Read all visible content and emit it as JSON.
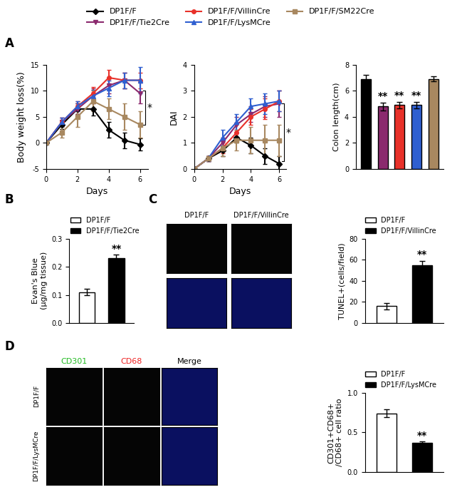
{
  "chart_data": [
    {
      "type": "line",
      "panel": "A",
      "x_label": "Days",
      "y_label": "Body weight loss(%)",
      "x": [
        0,
        1,
        2,
        3,
        4,
        5,
        6
      ],
      "xlim": [
        0,
        6.5
      ],
      "xticks": [
        0,
        2,
        4,
        6
      ],
      "ylim": [
        -5,
        15
      ],
      "yticks": [
        -5,
        0,
        5,
        10,
        15
      ],
      "legend": "upper center",
      "series": [
        {
          "name": "DP1F/F",
          "color": "#000000",
          "marker": "diamond",
          "values": [
            0,
            3.5,
            6.5,
            6.5,
            2.5,
            0.5,
            -0.3
          ],
          "errors": [
            0,
            0.8,
            1.0,
            1.2,
            1.5,
            1.5,
            1.2
          ]
        },
        {
          "name": "DP1F/F/Tie2Cre",
          "color": "#8b2a6e",
          "marker": "triangle_down",
          "values": [
            0,
            4,
            6.5,
            9,
            11,
            12,
            9.5
          ],
          "errors": [
            0,
            0.8,
            1.0,
            1.5,
            1.5,
            1.5,
            2.0
          ]
        },
        {
          "name": "DP1F/F/VillinCre",
          "color": "#e8312a",
          "marker": "circle",
          "values": [
            0,
            4,
            7,
            9.5,
            12.5,
            12,
            12
          ],
          "errors": [
            0,
            0.8,
            1.0,
            1.2,
            1.5,
            1.5,
            1.5
          ]
        },
        {
          "name": "DP1F/F/LysMCre",
          "color": "#2f5fd0",
          "marker": "triangle_up",
          "values": [
            0,
            4,
            7,
            9,
            10.5,
            12,
            12
          ],
          "errors": [
            0,
            0.8,
            1.0,
            1.2,
            1.5,
            1.5,
            2.5
          ]
        },
        {
          "name": "DP1F/F/SM22Cre",
          "color": "#a88860",
          "marker": "square",
          "values": [
            0,
            2,
            5,
            8,
            6.5,
            5,
            3.5
          ],
          "errors": [
            0,
            1.0,
            2.0,
            2.0,
            2.0,
            2.5,
            2.5
          ]
        }
      ],
      "annotations": [
        {
          "text": "*",
          "x": 6,
          "y_from": 3.5,
          "y_to": 10
        }
      ]
    },
    {
      "type": "line",
      "panel": "A",
      "x_label": "Days",
      "y_label": "DAI",
      "x": [
        0,
        1,
        2,
        3,
        4,
        5,
        6
      ],
      "xlim": [
        0,
        6.5
      ],
      "xticks": [
        0,
        2,
        4,
        6
      ],
      "ylim": [
        0,
        4
      ],
      "yticks": [
        0,
        1,
        2,
        3,
        4
      ],
      "series": [
        {
          "name": "DP1F/F",
          "color": "#000000",
          "marker": "diamond",
          "values": [
            0,
            0.4,
            0.7,
            1.2,
            0.9,
            0.5,
            0.2
          ],
          "errors": [
            0,
            0.1,
            0.2,
            0.2,
            0.3,
            0.3,
            0.3
          ]
        },
        {
          "name": "DP1F/F/Tie2Cre",
          "color": "#8b2a6e",
          "marker": "triangle_down",
          "values": [
            0,
            0.4,
            1.0,
            1.7,
            2.1,
            2.4,
            2.5
          ],
          "errors": [
            0,
            0.1,
            0.2,
            0.3,
            0.3,
            0.4,
            0.5
          ]
        },
        {
          "name": "DP1F/F/VillinCre",
          "color": "#e8312a",
          "marker": "circle",
          "values": [
            0,
            0.4,
            0.8,
            1.4,
            2.0,
            2.3,
            2.6
          ],
          "errors": [
            0,
            0.1,
            0.2,
            0.3,
            0.3,
            0.4,
            0.4
          ]
        },
        {
          "name": "DP1F/F/LysMCre",
          "color": "#2f5fd0",
          "marker": "triangle_up",
          "values": [
            0,
            0.4,
            1.2,
            1.8,
            2.4,
            2.5,
            2.6
          ],
          "errors": [
            0,
            0.1,
            0.3,
            0.3,
            0.3,
            0.4,
            0.4
          ]
        },
        {
          "name": "DP1F/F/SM22Cre",
          "color": "#a88860",
          "marker": "square",
          "values": [
            0,
            0.4,
            0.8,
            1.1,
            1.1,
            1.1,
            1.1
          ],
          "errors": [
            0,
            0.1,
            0.3,
            0.4,
            0.5,
            0.6,
            0.6
          ]
        }
      ],
      "annotations": [
        {
          "text": "*",
          "x": 6,
          "y_from": 0.3,
          "y_to": 2.5
        }
      ]
    },
    {
      "type": "bar",
      "panel": "A",
      "y_label": "Colon length(cm)",
      "categories": [
        "DP1F/F",
        "DP1F/F/Tie2Cre",
        "DP1F/F/VillinCre",
        "DP1F/F/LysMCre",
        "DP1F/F/SM22Cre"
      ],
      "values": [
        6.9,
        4.8,
        4.9,
        4.9,
        6.9
      ],
      "errors": [
        0.3,
        0.3,
        0.25,
        0.25,
        0.2
      ],
      "colors": [
        "#000000",
        "#8b2a6e",
        "#e8312a",
        "#2f5fd0",
        "#a88860"
      ],
      "ylim": [
        0,
        8
      ],
      "yticks": [
        0,
        2,
        4,
        6,
        8
      ],
      "tick_labels": "y",
      "annotations": [
        {
          "text": "**",
          "category": 1
        },
        {
          "text": "**",
          "category": 2
        },
        {
          "text": "**",
          "category": 3
        }
      ]
    },
    {
      "type": "bar",
      "panel": "B",
      "y_label": "Evan's Blue\n(μg/mg tissue)",
      "categories": [
        "DP1F/F",
        "DP1F/F/Tie2Cre"
      ],
      "values": [
        0.11,
        0.23
      ],
      "errors": [
        0.012,
        0.013
      ],
      "colors": [
        "#ffffff",
        "#000000"
      ],
      "ylim": [
        0,
        0.3
      ],
      "yticks": [
        {
          "value": 0,
          "label": "0.0"
        },
        0.1,
        0.2,
        0.3
      ],
      "tick_labels": "y",
      "legend": "upper left",
      "annotations": [
        {
          "text": "**",
          "category": 1
        }
      ]
    },
    {
      "type": "bar",
      "panel": "C",
      "y_label": "TUNEL+(cells/field)",
      "categories": [
        "DP1F/F",
        "DP1F/F/VillinCre"
      ],
      "values": [
        16,
        55
      ],
      "errors": [
        3,
        4
      ],
      "colors": [
        "#ffffff",
        "#000000"
      ],
      "ylim": [
        0,
        80
      ],
      "yticks": [
        0,
        20,
        40,
        60,
        80
      ],
      "tick_labels": "y",
      "legend": "upper left",
      "annotations": [
        {
          "text": "**",
          "category": 1
        }
      ]
    },
    {
      "type": "bar",
      "panel": "D",
      "y_label": "CD301+CD68+\n/CD68+ cell ratio",
      "categories": [
        "DP1F/F",
        "DP1F/F/LysMCre"
      ],
      "values": [
        0.74,
        0.37
      ],
      "errors": [
        0.05,
        0.02
      ],
      "colors": [
        "#ffffff",
        "#000000"
      ],
      "ylim": [
        0,
        1.0
      ],
      "yticks": [
        {
          "value": 0,
          "label": "0.0"
        },
        0.5,
        1.0
      ],
      "tick_labels": "y",
      "legend": "upper left",
      "annotations": [
        {
          "text": "**",
          "category": 1
        }
      ]
    }
  ],
  "images": {
    "C": {
      "columns": [
        "DP1F/F",
        "DP1F/F/VillinCre"
      ]
    },
    "D": {
      "channels": [
        "CD301",
        "CD68",
        "Merge"
      ],
      "channel_colors": [
        "#22bb22",
        "#ee2222",
        "#000000"
      ],
      "rows": [
        "DP1F/F",
        "DP1F/F/LysMCre"
      ]
    }
  },
  "panel_labels": [
    "A",
    "B",
    "C",
    "D"
  ]
}
